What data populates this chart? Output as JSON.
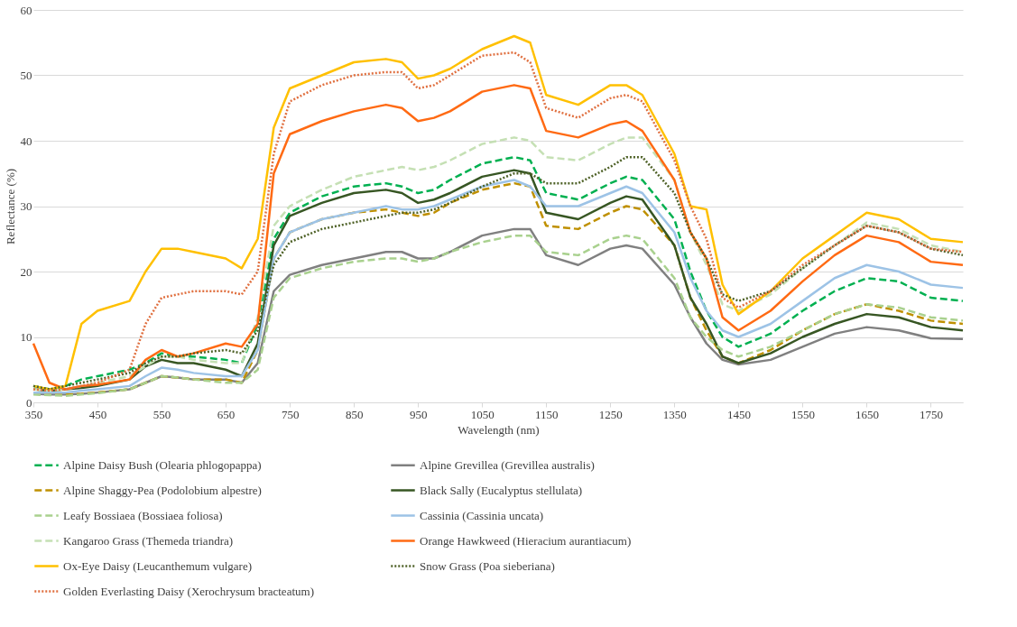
{
  "chart_data": {
    "type": "line",
    "xlabel": "Wavelength (nm)",
    "ylabel": "Reflectance (%)",
    "xlim": [
      350,
      1800
    ],
    "xticks": [
      350,
      450,
      550,
      650,
      750,
      850,
      950,
      1050,
      1150,
      1250,
      1350,
      1450,
      1550,
      1650,
      1750
    ],
    "ylim": [
      0,
      60
    ],
    "yticks": [
      0,
      10,
      20,
      30,
      40,
      50,
      60
    ],
    "grid": "y",
    "legend": "bottom",
    "marker": "none",
    "x": [
      350,
      375,
      400,
      425,
      450,
      500,
      525,
      550,
      575,
      600,
      650,
      675,
      700,
      725,
      750,
      800,
      850,
      900,
      925,
      950,
      975,
      1000,
      1050,
      1100,
      1125,
      1150,
      1200,
      1250,
      1275,
      1300,
      1350,
      1375,
      1400,
      1425,
      1450,
      1500,
      1550,
      1600,
      1650,
      1700,
      1750,
      1800
    ],
    "series": [
      {
        "name": "Alpine Daisy Bush (Olearia phlogopappa)",
        "color": "#00b050",
        "line_style": "dashed",
        "values": [
          2.5,
          2,
          2.5,
          3.5,
          4,
          5,
          6,
          7.5,
          7,
          7,
          6.5,
          6,
          12,
          25,
          29,
          31.5,
          33,
          33.5,
          33,
          32,
          32.5,
          34,
          36.5,
          37.5,
          37,
          32,
          31,
          33.5,
          34.5,
          34,
          28,
          20,
          14,
          10,
          8.5,
          10.5,
          14,
          17,
          19,
          18.5,
          16,
          15.5
        ]
      },
      {
        "name": "Alpine Grevillea (Grevillea australis)",
        "color": "#808080",
        "line_style": "solid",
        "values": [
          1.3,
          1.2,
          1.2,
          1.3,
          1.5,
          2,
          3,
          4,
          3.8,
          3.5,
          3.5,
          3,
          6,
          17,
          19.5,
          21,
          22,
          23,
          23,
          22,
          22,
          23,
          25.5,
          26.5,
          26.5,
          22.5,
          21,
          23.5,
          24,
          23.5,
          18,
          13,
          9,
          6.5,
          5.8,
          6.5,
          8.5,
          10.5,
          11.5,
          11,
          9.8,
          9.7
        ]
      },
      {
        "name": "Alpine Shaggy-Pea (Podolobium alpestre)",
        "color": "#bf9000",
        "line_style": "dashed",
        "values": [
          1.3,
          1.2,
          1.2,
          1.3,
          1.5,
          2,
          3,
          4,
          3.8,
          3.5,
          3.5,
          3,
          8,
          22,
          26,
          28,
          29,
          29.5,
          29,
          28.5,
          29,
          30.5,
          32.5,
          33.5,
          33,
          27,
          26.5,
          29,
          30,
          29.5,
          24,
          16,
          11,
          7,
          6,
          8,
          11,
          13.5,
          15,
          14,
          12.5,
          12
        ]
      },
      {
        "name": "Black Sally (Eucalyptus stellulata)",
        "color": "#375623",
        "line_style": "solid",
        "values": [
          2,
          1.8,
          2,
          2.2,
          2.5,
          3.5,
          5.5,
          6.5,
          6,
          6,
          5,
          4,
          9,
          24,
          28.5,
          30.5,
          32,
          32.5,
          32,
          30.5,
          31,
          32,
          34.5,
          35.5,
          35,
          29,
          28,
          30.5,
          31.5,
          31,
          24,
          16,
          12,
          7,
          6,
          7.5,
          10,
          12,
          13.5,
          13,
          11.5,
          11
        ]
      },
      {
        "name": "Leafy Bossiaea (Bossiaea foliosa)",
        "color": "#a9d18e",
        "line_style": "dashed",
        "values": [
          1.2,
          1.1,
          1,
          1.2,
          1.4,
          2,
          3,
          4,
          3.8,
          3.5,
          3,
          3,
          5,
          16,
          19,
          20.5,
          21.5,
          22,
          22,
          21.5,
          22,
          23,
          24.5,
          25.5,
          25.5,
          23,
          22.5,
          25,
          25.5,
          25,
          19,
          13,
          10,
          8,
          7,
          8.5,
          11,
          13.5,
          15,
          14.5,
          13,
          12.5
        ]
      },
      {
        "name": "Cassinia (Cassinia uncata)",
        "color": "#9dc3e6",
        "line_style": "solid",
        "values": [
          1.5,
          1.5,
          1.5,
          1.8,
          2,
          2.5,
          4,
          5.3,
          5,
          4.5,
          4,
          4,
          8,
          22,
          26,
          28,
          29,
          30,
          29.5,
          29.5,
          30,
          31,
          33,
          34,
          33,
          30,
          30,
          32,
          33,
          32,
          26,
          19,
          14,
          11,
          10,
          12,
          15.5,
          19,
          21,
          20,
          18,
          17.5
        ]
      },
      {
        "name": "Kangaroo Grass (Themeda triandra)",
        "color": "#c5e0b4",
        "line_style": "dashed",
        "values": [
          2,
          1.8,
          2,
          2.5,
          3,
          4,
          5.5,
          7,
          7,
          6.5,
          6,
          6,
          13,
          27,
          30,
          32.5,
          34.5,
          35.5,
          36,
          35.5,
          36,
          37,
          39.5,
          40.5,
          40,
          37.5,
          37,
          39.5,
          40.5,
          40.5,
          34,
          26,
          21,
          15,
          14,
          16.5,
          20.5,
          24,
          27.5,
          26.5,
          24,
          23
        ]
      },
      {
        "name": "Orange Hawkweed (Hieracium aurantiacum)",
        "color": "#ff6a13",
        "line_style": "solid",
        "values": [
          9,
          3,
          2,
          2.5,
          2.7,
          3.5,
          6.5,
          8,
          7,
          7.5,
          9,
          8.5,
          12,
          35,
          41,
          43,
          44.5,
          45.5,
          45,
          43,
          43.5,
          44.5,
          47.5,
          48.5,
          48,
          41.5,
          40.5,
          42.5,
          43,
          41.5,
          34,
          26,
          22,
          13,
          11,
          14,
          18.5,
          22.5,
          25.5,
          24.5,
          21.5,
          21
        ]
      },
      {
        "name": "Ox-Eye Daisy (Leucanthemum vulgare)",
        "color": "#ffc000",
        "line_style": "solid",
        "values": [
          2.5,
          2,
          2.5,
          12,
          14,
          15.5,
          20,
          23.5,
          23.5,
          23,
          22,
          20.5,
          25,
          42,
          48,
          50,
          52,
          52.5,
          52,
          49.5,
          50,
          51,
          54,
          56,
          55,
          47,
          45.5,
          48.5,
          48.5,
          47,
          38,
          30,
          29.5,
          18,
          13.5,
          17,
          22,
          25.5,
          29,
          28,
          25,
          24.5
        ]
      },
      {
        "name": "Snow Grass (Poa sieberiana)",
        "color": "#4f6228",
        "line_style": "dotted",
        "values": [
          2.5,
          2,
          2.5,
          3,
          3.5,
          4.5,
          6,
          7,
          7,
          7.5,
          8,
          7.5,
          11,
          21,
          24.5,
          26.5,
          27.5,
          28.5,
          29,
          29,
          29.5,
          30.5,
          33,
          35,
          35,
          33.5,
          33.5,
          36,
          37.5,
          37.5,
          32,
          26,
          22,
          16.5,
          15.5,
          17,
          20.5,
          24,
          27,
          26,
          23.5,
          22.5
        ]
      },
      {
        "name": "Golden Everlasting Daisy (Xerochrysum bracteatum)",
        "color": "#e07040",
        "line_style": "dotted",
        "values": [
          2,
          1.8,
          2,
          2.5,
          3,
          5,
          12,
          16,
          16.5,
          17,
          17,
          16.5,
          20,
          38,
          46,
          48.5,
          50,
          50.5,
          50.5,
          48,
          48.5,
          50,
          53,
          53.5,
          52,
          45,
          43.5,
          46.5,
          47,
          46,
          37,
          30,
          25,
          16,
          14.5,
          17,
          21,
          24,
          27,
          26,
          23.5,
          23
        ]
      }
    ]
  }
}
